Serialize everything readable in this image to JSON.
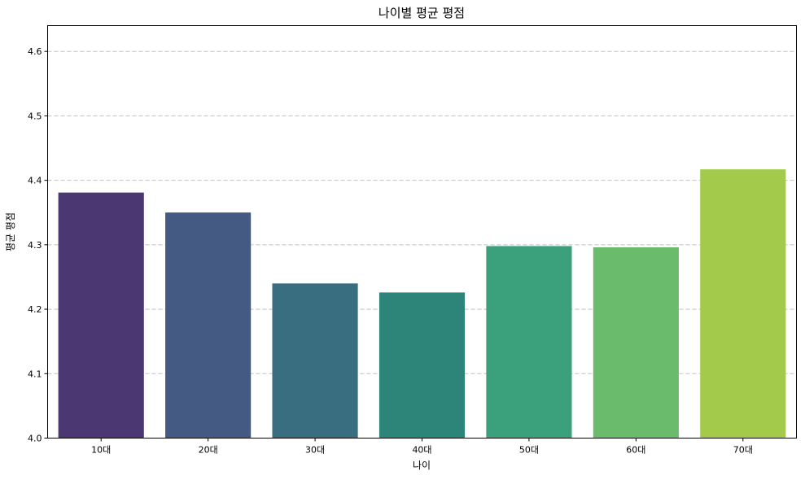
{
  "chart_data": {
    "type": "bar",
    "title": "나이별 평균 평점",
    "xlabel": "나이",
    "ylabel": "평균 평점",
    "categories": [
      "10대",
      "20대",
      "30대",
      "40대",
      "50대",
      "60대",
      "70대"
    ],
    "values": [
      4.381,
      4.35,
      4.24,
      4.226,
      4.298,
      4.296,
      4.417
    ],
    "colors": [
      "#4b3771",
      "#455a82",
      "#396e80",
      "#2d8479",
      "#3ba07c",
      "#6bbb6c",
      "#a3ca4a"
    ],
    "ylim": [
      4.0,
      4.64
    ],
    "yticks": [
      "4.0",
      "4.1",
      "4.2",
      "4.3",
      "4.4",
      "4.5",
      "4.6"
    ],
    "grid": "y-dashed",
    "legend": "none"
  }
}
